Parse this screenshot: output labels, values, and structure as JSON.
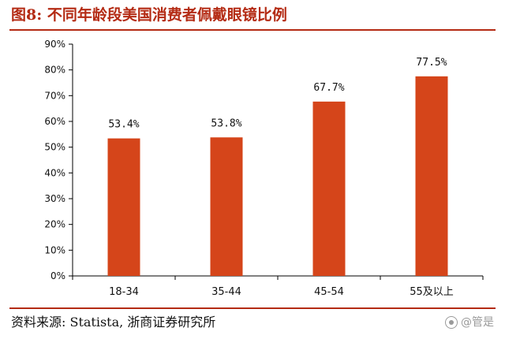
{
  "header": {
    "title": "图8:   不同年龄段美国消费者佩戴眼镜比例"
  },
  "footer": {
    "source": "资料来源: Statista, 浙商证券研究所",
    "watermark": "@管是"
  },
  "colors": {
    "bar": "#d5451a",
    "accent": "#b42b14",
    "axis": "#000000",
    "text": "#111111"
  },
  "chart_data": {
    "type": "bar",
    "title": "",
    "xlabel": "",
    "ylabel": "",
    "categories": [
      "18-34",
      "35-44",
      "45-54",
      "55及以上"
    ],
    "values": [
      53.4,
      53.8,
      67.7,
      77.5
    ],
    "data_labels": [
      "53.4%",
      "53.8%",
      "67.7%",
      "77.5%"
    ],
    "ylim": [
      0,
      90
    ],
    "yticks": [
      0,
      10,
      20,
      30,
      40,
      50,
      60,
      70,
      80,
      90
    ],
    "ytick_labels": [
      "0%",
      "10%",
      "20%",
      "30%",
      "40%",
      "50%",
      "60%",
      "70%",
      "80%",
      "90%"
    ],
    "grid": false,
    "legend": "none"
  }
}
